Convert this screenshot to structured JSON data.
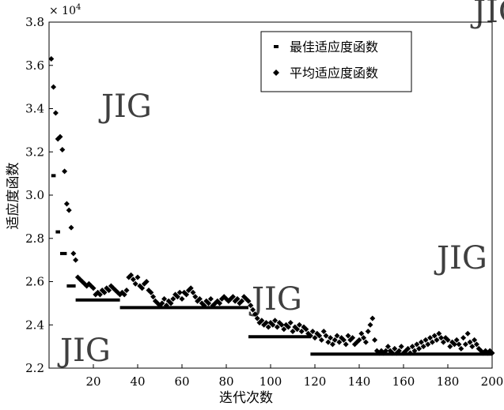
{
  "chart_data": {
    "type": "scatter",
    "xlabel": "迭代次数",
    "ylabel": "适应度函数",
    "y_multiplier_label": "× 10",
    "y_multiplier_exp": "4",
    "xlim": [
      0,
      200
    ],
    "ylim": [
      2.2,
      3.8
    ],
    "x_ticks": [
      20,
      40,
      60,
      80,
      100,
      120,
      140,
      160,
      180,
      200
    ],
    "y_ticks": [
      2.2,
      2.4,
      2.6,
      2.8,
      3.0,
      3.2,
      3.4,
      3.6,
      3.8
    ],
    "x_tick_labels": [
      "20",
      "40",
      "60",
      "80",
      "100",
      "120",
      "140",
      "160",
      "180",
      "200"
    ],
    "y_tick_labels": [
      "2.2",
      "2.4",
      "2.6",
      "2.8",
      "3.0",
      "3.2",
      "3.4",
      "3.6",
      "3.8"
    ],
    "legend_position": "top-right",
    "watermark": "JIG",
    "series": [
      {
        "name": "最佳适应度函数",
        "marker": "dash",
        "segments": [
          {
            "x0": 1,
            "x1": 3,
            "y": 3.09
          },
          {
            "x0": 3,
            "x1": 5,
            "y": 2.83
          },
          {
            "x0": 5,
            "x1": 8,
            "y": 2.73
          },
          {
            "x0": 8,
            "x1": 12,
            "y": 2.58
          },
          {
            "x0": 12,
            "x1": 32,
            "y": 2.515
          },
          {
            "x0": 32,
            "x1": 90,
            "y": 2.48
          },
          {
            "x0": 90,
            "x1": 118,
            "y": 2.345
          },
          {
            "x0": 118,
            "x1": 200,
            "y": 2.265
          }
        ]
      },
      {
        "name": "平均适应度函数",
        "marker": "diamond",
        "points": [
          [
            1,
            3.63
          ],
          [
            2,
            3.5
          ],
          [
            3,
            3.38
          ],
          [
            4,
            3.26
          ],
          [
            5,
            3.27
          ],
          [
            6,
            3.21
          ],
          [
            7,
            3.11
          ],
          [
            8,
            2.96
          ],
          [
            9,
            2.93
          ],
          [
            10,
            2.85
          ],
          [
            11,
            2.73
          ],
          [
            12,
            2.7
          ],
          [
            13,
            2.62
          ],
          [
            14,
            2.61
          ],
          [
            15,
            2.6
          ],
          [
            16,
            2.59
          ],
          [
            17,
            2.58
          ],
          [
            18,
            2.59
          ],
          [
            19,
            2.58
          ],
          [
            20,
            2.57
          ],
          [
            21,
            2.54
          ],
          [
            22,
            2.55
          ],
          [
            23,
            2.54
          ],
          [
            24,
            2.56
          ],
          [
            25,
            2.55
          ],
          [
            26,
            2.57
          ],
          [
            27,
            2.56
          ],
          [
            28,
            2.58
          ],
          [
            29,
            2.57
          ],
          [
            30,
            2.56
          ],
          [
            31,
            2.55
          ],
          [
            32,
            2.54
          ],
          [
            33,
            2.55
          ],
          [
            34,
            2.54
          ],
          [
            35,
            2.56
          ],
          [
            36,
            2.62
          ],
          [
            37,
            2.63
          ],
          [
            38,
            2.61
          ],
          [
            39,
            2.59
          ],
          [
            40,
            2.62
          ],
          [
            41,
            2.58
          ],
          [
            42,
            2.57
          ],
          [
            43,
            2.59
          ],
          [
            44,
            2.6
          ],
          [
            45,
            2.56
          ],
          [
            46,
            2.55
          ],
          [
            47,
            2.53
          ],
          [
            48,
            2.51
          ],
          [
            49,
            2.5
          ],
          [
            50,
            2.49
          ],
          [
            51,
            2.5
          ],
          [
            52,
            2.52
          ],
          [
            53,
            2.49
          ],
          [
            54,
            2.51
          ],
          [
            55,
            2.5
          ],
          [
            56,
            2.52
          ],
          [
            57,
            2.54
          ],
          [
            58,
            2.53
          ],
          [
            59,
            2.55
          ],
          [
            60,
            2.52
          ],
          [
            61,
            2.55
          ],
          [
            62,
            2.54
          ],
          [
            63,
            2.56
          ],
          [
            64,
            2.57
          ],
          [
            65,
            2.55
          ],
          [
            66,
            2.53
          ],
          [
            67,
            2.51
          ],
          [
            68,
            2.52
          ],
          [
            69,
            2.5
          ],
          [
            70,
            2.49
          ],
          [
            71,
            2.51
          ],
          [
            72,
            2.5
          ],
          [
            73,
            2.52
          ],
          [
            74,
            2.49
          ],
          [
            75,
            2.5
          ],
          [
            76,
            2.51
          ],
          [
            77,
            2.5
          ],
          [
            78,
            2.52
          ],
          [
            79,
            2.53
          ],
          [
            80,
            2.52
          ],
          [
            81,
            2.51
          ],
          [
            82,
            2.52
          ],
          [
            83,
            2.53
          ],
          [
            84,
            2.51
          ],
          [
            85,
            2.52
          ],
          [
            86,
            2.5
          ],
          [
            87,
            2.51
          ],
          [
            88,
            2.53
          ],
          [
            89,
            2.52
          ],
          [
            90,
            2.51
          ],
          [
            91,
            2.49
          ],
          [
            92,
            2.47
          ],
          [
            93,
            2.45
          ],
          [
            94,
            2.43
          ],
          [
            95,
            2.41
          ],
          [
            96,
            2.42
          ],
          [
            97,
            2.4
          ],
          [
            98,
            2.41
          ],
          [
            99,
            2.39
          ],
          [
            100,
            2.41
          ],
          [
            101,
            2.4
          ],
          [
            102,
            2.42
          ],
          [
            103,
            2.39
          ],
          [
            104,
            2.41
          ],
          [
            105,
            2.4
          ],
          [
            106,
            2.38
          ],
          [
            107,
            2.4
          ],
          [
            108,
            2.39
          ],
          [
            109,
            2.41
          ],
          [
            110,
            2.37
          ],
          [
            111,
            2.39
          ],
          [
            112,
            2.38
          ],
          [
            113,
            2.4
          ],
          [
            114,
            2.37
          ],
          [
            115,
            2.39
          ],
          [
            116,
            2.38
          ],
          [
            117,
            2.36
          ],
          [
            118,
            2.35
          ],
          [
            119,
            2.37
          ],
          [
            120,
            2.34
          ],
          [
            121,
            2.36
          ],
          [
            122,
            2.35
          ],
          [
            123,
            2.33
          ],
          [
            124,
            2.37
          ],
          [
            125,
            2.35
          ],
          [
            126,
            2.32
          ],
          [
            127,
            2.34
          ],
          [
            128,
            2.31
          ],
          [
            129,
            2.33
          ],
          [
            130,
            2.35
          ],
          [
            131,
            2.32
          ],
          [
            132,
            2.34
          ],
          [
            133,
            2.33
          ],
          [
            134,
            2.31
          ],
          [
            135,
            2.35
          ],
          [
            136,
            2.33
          ],
          [
            137,
            2.34
          ],
          [
            138,
            2.31
          ],
          [
            139,
            2.32
          ],
          [
            140,
            2.33
          ],
          [
            141,
            2.36
          ],
          [
            142,
            2.34
          ],
          [
            143,
            2.32
          ],
          [
            144,
            2.37
          ],
          [
            145,
            2.4
          ],
          [
            146,
            2.43
          ],
          [
            147,
            2.33
          ],
          [
            148,
            2.28
          ],
          [
            149,
            2.27
          ],
          [
            150,
            2.28
          ],
          [
            151,
            2.27
          ],
          [
            152,
            2.28
          ],
          [
            153,
            2.3
          ],
          [
            154,
            2.28
          ],
          [
            155,
            2.27
          ],
          [
            156,
            2.29
          ],
          [
            157,
            2.27
          ],
          [
            158,
            2.28
          ],
          [
            159,
            2.3
          ],
          [
            160,
            2.27
          ],
          [
            161,
            2.28
          ],
          [
            162,
            2.29
          ],
          [
            163,
            2.27
          ],
          [
            164,
            2.3
          ],
          [
            165,
            2.28
          ],
          [
            166,
            2.31
          ],
          [
            167,
            2.29
          ],
          [
            168,
            2.32
          ],
          [
            169,
            2.3
          ],
          [
            170,
            2.33
          ],
          [
            171,
            2.31
          ],
          [
            172,
            2.34
          ],
          [
            173,
            2.32
          ],
          [
            174,
            2.35
          ],
          [
            175,
            2.33
          ],
          [
            176,
            2.36
          ],
          [
            177,
            2.34
          ],
          [
            178,
            2.32
          ],
          [
            179,
            2.34
          ],
          [
            180,
            2.33
          ],
          [
            181,
            2.3
          ],
          [
            182,
            2.32
          ],
          [
            183,
            2.31
          ],
          [
            184,
            2.33
          ],
          [
            185,
            2.31
          ],
          [
            186,
            2.29
          ],
          [
            187,
            2.34
          ],
          [
            188,
            2.31
          ],
          [
            189,
            2.36
          ],
          [
            190,
            2.32
          ],
          [
            191,
            2.3
          ],
          [
            192,
            2.33
          ],
          [
            193,
            2.31
          ],
          [
            194,
            2.29
          ],
          [
            195,
            2.28
          ],
          [
            196,
            2.27
          ],
          [
            197,
            2.28
          ],
          [
            198,
            2.27
          ],
          [
            199,
            2.28
          ],
          [
            200,
            2.27
          ]
        ]
      }
    ]
  }
}
